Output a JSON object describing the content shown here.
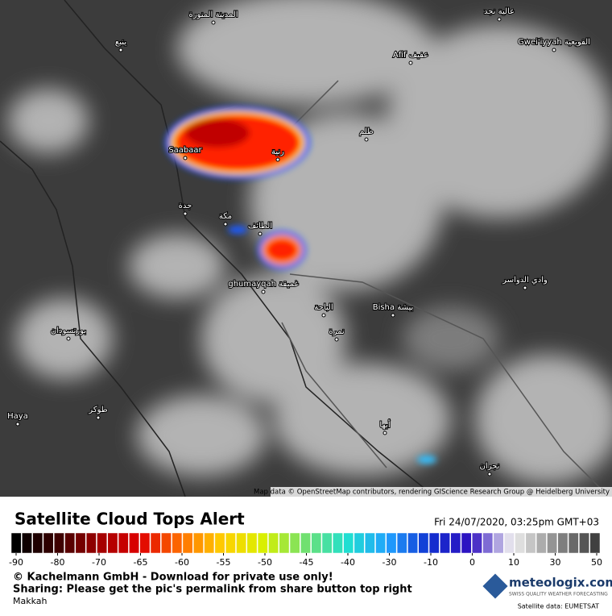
{
  "map": {
    "places": [
      "المدينة المنورة",
      "ينبع",
      "عالية نجد",
      "Gwei'iyyah القويعية",
      "Afif عفيف",
      "ظلم",
      "رنية",
      "Saabaar",
      "جدة",
      "مكة",
      "الطائف",
      "ghumayqah غميقة",
      "الباحة",
      "Bisha بيشة",
      "وادي الدواسر",
      "نمرة",
      "بورتسودان",
      "Haya",
      "طوكر",
      "أبها",
      "نجران"
    ],
    "attribution": "Map data © OpenStreetMap contributors, rendering GIScience Research Group @ Heidelberg University"
  },
  "panel": {
    "title": "Satellite Cloud Tops Alert",
    "date": "Fri 24/07/2020, 03:25pm GMT+03",
    "colorbar": {
      "ticks": [
        -90,
        -80,
        -70,
        -65,
        -60,
        -55,
        -50,
        -45,
        -40,
        -30,
        -10,
        0,
        10,
        30,
        50
      ],
      "colors": [
        "#000000",
        "#3a0000",
        "#a00000",
        "#e00000",
        "#ff7000",
        "#ffd000",
        "#d8f000",
        "#70e070",
        "#20e0d0",
        "#20a0ff",
        "#1030d0",
        "#3010c0",
        "#f0f0f0",
        "#909090",
        "#404040"
      ]
    },
    "copyright": "© Kachelmann GmbH - Download for private use only!",
    "sharing": "Sharing: Please get the pic's permalink from share button top right",
    "region": "Makkah",
    "brand": "meteologix.com",
    "tagline": "SWISS QUALITY WEATHER FORECASTING",
    "source": "Satellite data: EUMETSAT"
  }
}
